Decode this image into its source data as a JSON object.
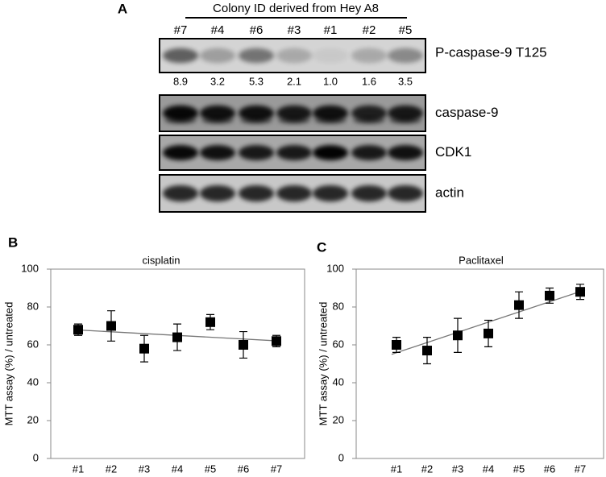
{
  "blot": {
    "panel": "A",
    "header": "Colony ID derived from Hey A8",
    "lanes": [
      "#7",
      "#4",
      "#6",
      "#3",
      "#1",
      "#2",
      "#5"
    ],
    "quantification": [
      "8.9",
      "3.2",
      "5.3",
      "2.1",
      "1.0",
      "1.6",
      "3.5"
    ],
    "rows": [
      "P-caspase-9 T125",
      "caspase-9",
      "CDK1",
      "actin"
    ]
  },
  "chart_data": [
    {
      "type": "scatter",
      "panel": "B",
      "title": "cisplatin",
      "y_label": "MTT assay (%) / untreated",
      "categories": [
        "#1",
        "#2",
        "#3",
        "#4",
        "#5",
        "#6",
        "#7"
      ],
      "values": [
        68,
        70,
        58,
        64,
        72,
        60,
        62
      ],
      "errors": [
        3,
        8,
        7,
        7,
        4,
        7,
        3
      ],
      "trend": [
        68,
        62
      ],
      "color": "#000000",
      "ylim": [
        0,
        100
      ],
      "yticks": [
        0,
        20,
        40,
        60,
        80,
        100
      ]
    },
    {
      "type": "scatter",
      "panel": "C",
      "title": "Paclitaxel",
      "y_label": "MTT assay (%) / untreated",
      "categories": [
        "#1",
        "#2",
        "#3",
        "#4",
        "#5",
        "#6",
        "#7"
      ],
      "values": [
        60,
        57,
        65,
        66,
        81,
        86,
        88
      ],
      "errors": [
        4,
        7,
        9,
        7,
        7,
        4,
        4
      ],
      "trend": [
        55,
        89
      ],
      "color": "#000000",
      "ylim": [
        0,
        100
      ],
      "yticks": [
        0,
        20,
        40,
        60,
        80,
        100
      ]
    }
  ]
}
